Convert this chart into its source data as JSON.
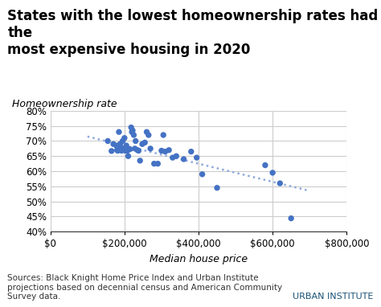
{
  "title": "States with the lowest homeownership rates had the\nmost expensive housing in 2020",
  "ylabel": "Homeownership rate",
  "xlabel": "Median house price",
  "source_text": "Sources: Black Knight Home Price Index and Urban Institute\nprojections based on decennial census and American Community\nSurvey data.",
  "urban_institute_text": "URBAN INSTITUTE",
  "xlim": [
    0,
    800000
  ],
  "ylim": [
    0.4,
    0.8
  ],
  "xticks": [
    0,
    200000,
    400000,
    600000,
    800000
  ],
  "yticks": [
    0.4,
    0.45,
    0.5,
    0.55,
    0.6,
    0.65,
    0.7,
    0.75,
    0.8
  ],
  "scatter_color": "#4472C4",
  "trendline_color": "#8FAADC",
  "scatter_points": [
    [
      155000,
      0.7
    ],
    [
      165000,
      0.667
    ],
    [
      170000,
      0.69
    ],
    [
      178000,
      0.685
    ],
    [
      180000,
      0.67
    ],
    [
      182000,
      0.668
    ],
    [
      185000,
      0.73
    ],
    [
      188000,
      0.69
    ],
    [
      190000,
      0.68
    ],
    [
      192000,
      0.668
    ],
    [
      195000,
      0.7
    ],
    [
      198000,
      0.673
    ],
    [
      200000,
      0.71
    ],
    [
      202000,
      0.668
    ],
    [
      205000,
      0.685
    ],
    [
      208000,
      0.668
    ],
    [
      210000,
      0.65
    ],
    [
      215000,
      0.673
    ],
    [
      218000,
      0.745
    ],
    [
      220000,
      0.73
    ],
    [
      222000,
      0.735
    ],
    [
      225000,
      0.72
    ],
    [
      228000,
      0.675
    ],
    [
      230000,
      0.7
    ],
    [
      235000,
      0.67
    ],
    [
      238000,
      0.668
    ],
    [
      242000,
      0.635
    ],
    [
      248000,
      0.69
    ],
    [
      255000,
      0.695
    ],
    [
      260000,
      0.73
    ],
    [
      265000,
      0.72
    ],
    [
      270000,
      0.675
    ],
    [
      280000,
      0.625
    ],
    [
      290000,
      0.625
    ],
    [
      300000,
      0.668
    ],
    [
      305000,
      0.72
    ],
    [
      310000,
      0.665
    ],
    [
      320000,
      0.67
    ],
    [
      330000,
      0.645
    ],
    [
      340000,
      0.65
    ],
    [
      360000,
      0.64
    ],
    [
      380000,
      0.665
    ],
    [
      395000,
      0.645
    ],
    [
      410000,
      0.59
    ],
    [
      450000,
      0.545
    ],
    [
      580000,
      0.62
    ],
    [
      600000,
      0.595
    ],
    [
      620000,
      0.56
    ],
    [
      650000,
      0.444
    ]
  ],
  "trendline_x": [
    100000,
    700000
  ],
  "trendline_y": [
    0.715,
    0.535
  ],
  "background_color": "#ffffff",
  "grid_color": "#cccccc",
  "title_fontsize": 12,
  "label_fontsize": 9,
  "tick_fontsize": 8.5,
  "source_fontsize": 7.5,
  "ui_fontsize": 8
}
